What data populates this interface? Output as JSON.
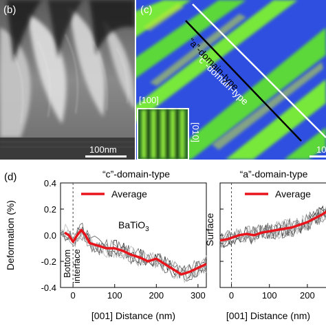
{
  "panels": {
    "b": {
      "letter": "(b)",
      "scale_bar": "100nm"
    },
    "c": {
      "letter": "(c)",
      "label_c_domain": "“c”-domain-type",
      "label_a_domain": "“a”-domain-type",
      "inset_top": "[100]",
      "inset_side": "[010]",
      "scale_bar_partial": "10"
    },
    "d": {
      "letter": "(d)",
      "surface_label": "Surface"
    }
  },
  "chart_data": [
    {
      "type": "line",
      "title": "“c”-domain-type",
      "xlabel": "[001] Distance (nm)",
      "ylabel": "Deformation (%)",
      "xlim": [
        -30,
        320
      ],
      "ylim": [
        -0.4,
        0.4
      ],
      "xticks": [
        "0",
        "100",
        "200",
        "300"
      ],
      "yticks": [
        "0.4",
        "0.2",
        "0.0",
        "-0.2",
        "-0.4"
      ],
      "legend": "top-right",
      "annotations": [
        "BaTiO₃",
        "Bottom interface"
      ],
      "series": [
        {
          "name": "Average",
          "color": "#e8141c",
          "x": [
            -20,
            -10,
            0,
            10,
            20,
            30,
            40,
            60,
            80,
            100,
            120,
            140,
            160,
            180,
            200,
            220,
            240,
            260,
            280,
            300,
            320
          ],
          "y": [
            0.02,
            0.0,
            -0.05,
            0.0,
            0.04,
            0.0,
            -0.06,
            -0.08,
            -0.1,
            -0.1,
            -0.12,
            -0.15,
            -0.17,
            -0.2,
            -0.18,
            -0.22,
            -0.26,
            -0.3,
            -0.28,
            -0.25,
            -0.22
          ]
        }
      ]
    },
    {
      "type": "line",
      "title": "“a”-domain-type",
      "xlabel": "[001] Distance (nm)",
      "ylabel": "",
      "xlim": [
        -30,
        260
      ],
      "ylim": [
        -0.4,
        0.4
      ],
      "xticks": [
        "0",
        "100",
        "200"
      ],
      "legend": "top-right",
      "series": [
        {
          "name": "Average",
          "color": "#e8141c",
          "x": [
            -30,
            -10,
            0,
            20,
            40,
            60,
            80,
            100,
            120,
            140,
            160,
            180,
            200,
            220,
            240,
            260
          ],
          "y": [
            -0.04,
            -0.03,
            -0.02,
            0.0,
            0.01,
            0.0,
            0.02,
            0.03,
            0.04,
            0.05,
            0.06,
            0.08,
            0.1,
            0.13,
            0.16,
            0.2
          ]
        }
      ]
    }
  ]
}
